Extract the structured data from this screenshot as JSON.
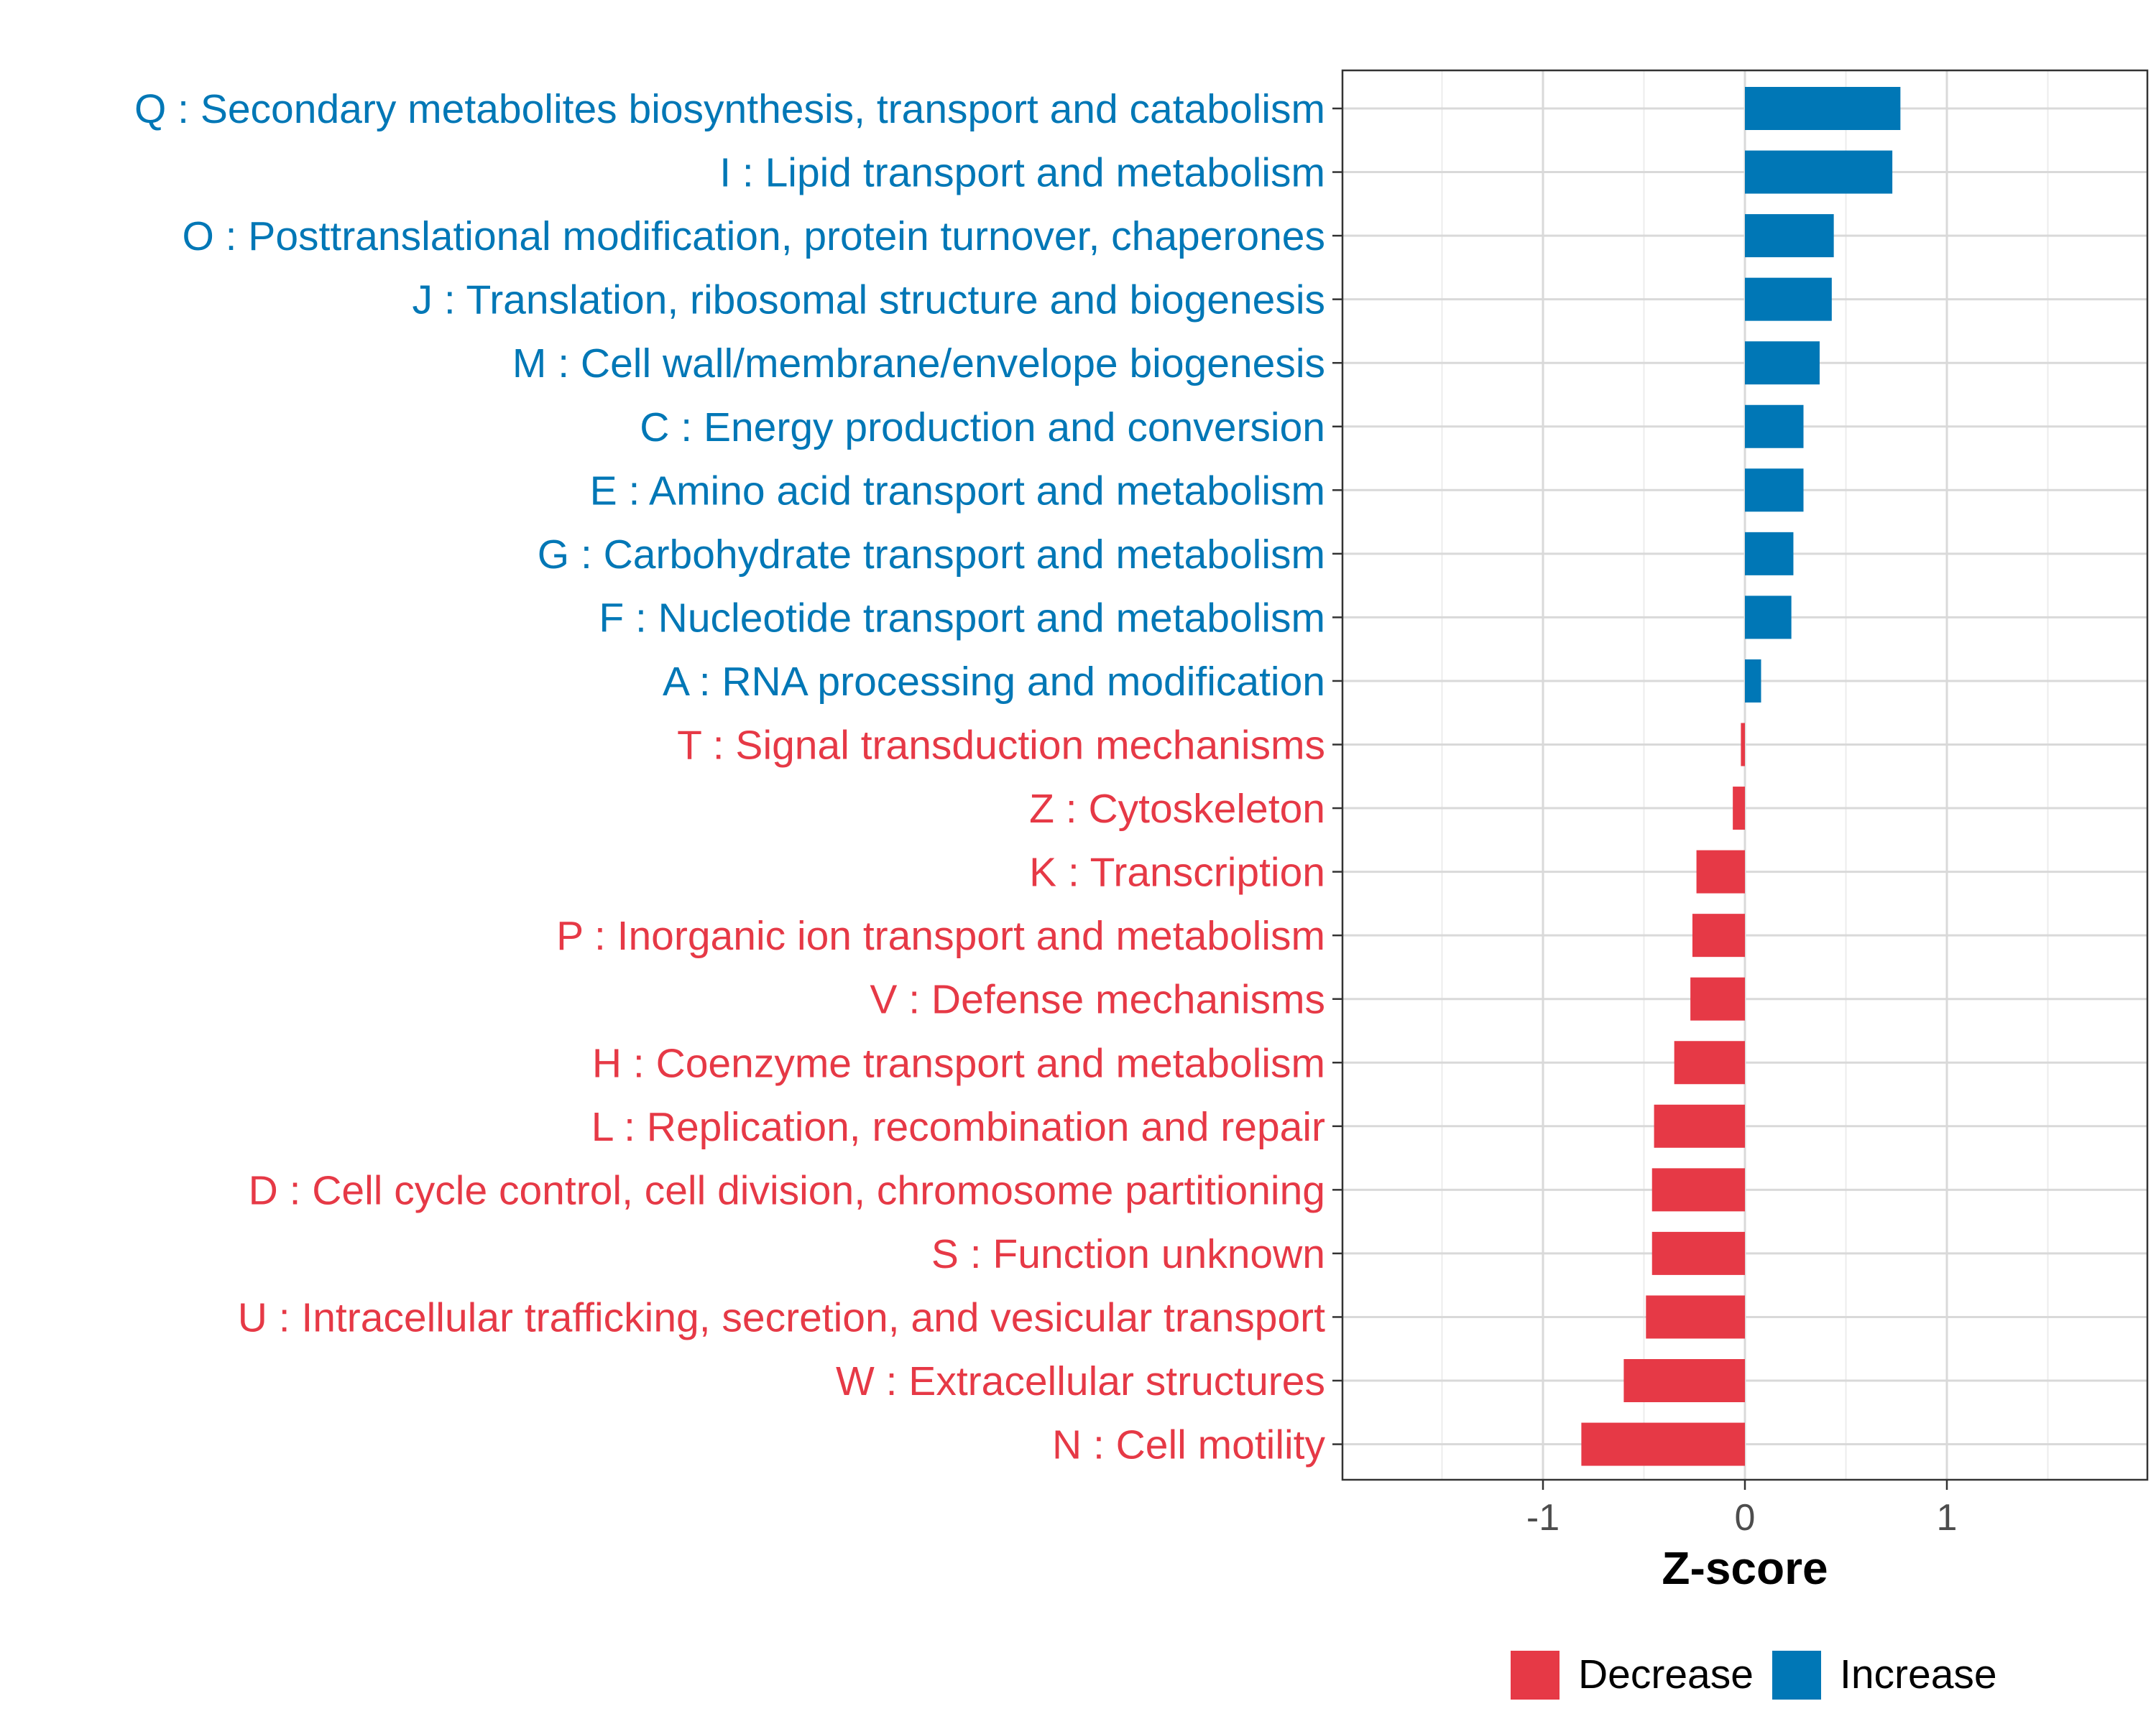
{
  "chart_data": {
    "type": "bar",
    "orientation": "horizontal",
    "title": "",
    "xlabel": "Z-score",
    "ylabel": "",
    "xlim": [
      -1.9,
      1.9
    ],
    "xticks": [
      -1,
      0,
      1
    ],
    "xtick_labels": [
      "-1",
      "0",
      "1"
    ],
    "grid": true,
    "legend_position": "bottom",
    "colors": {
      "Increase": "#0077b6",
      "Decrease": "#e63946"
    },
    "legend": [
      {
        "name": "Decrease",
        "color": "#e63946"
      },
      {
        "name": "Increase",
        "color": "#0077b6"
      }
    ],
    "categories": [
      "Q : Secondary metabolites biosynthesis, transport and catabolism",
      "I : Lipid transport and metabolism",
      "O : Posttranslational modification, protein turnover, chaperones",
      "J : Translation, ribosomal structure and biogenesis",
      "M : Cell wall/membrane/envelope biogenesis",
      "C : Energy production and conversion",
      "E : Amino acid transport and metabolism",
      "G : Carbohydrate transport and metabolism",
      "F : Nucleotide transport and metabolism",
      "A : RNA processing and modification",
      "T : Signal transduction mechanisms",
      "Z : Cytoskeleton",
      "K : Transcription",
      "P : Inorganic ion transport and metabolism",
      "V : Defense mechanisms",
      "H : Coenzyme transport and metabolism",
      "L : Replication, recombination and repair",
      "D : Cell cycle control, cell division, chromosome partitioning",
      "S : Function unknown",
      "U : Intracellular trafficking, secretion, and vesicular transport",
      "W : Extracellular structures",
      "N : Cell motility"
    ],
    "values": [
      0.77,
      0.73,
      0.44,
      0.43,
      0.37,
      0.29,
      0.29,
      0.24,
      0.23,
      0.08,
      -0.02,
      -0.06,
      -0.24,
      -0.26,
      -0.27,
      -0.35,
      -0.45,
      -0.46,
      -0.46,
      -0.49,
      -0.6,
      -0.81
    ],
    "groups": [
      "Increase",
      "Increase",
      "Increase",
      "Increase",
      "Increase",
      "Increase",
      "Increase",
      "Increase",
      "Increase",
      "Increase",
      "Decrease",
      "Decrease",
      "Decrease",
      "Decrease",
      "Decrease",
      "Decrease",
      "Decrease",
      "Decrease",
      "Decrease",
      "Decrease",
      "Decrease",
      "Decrease"
    ]
  }
}
